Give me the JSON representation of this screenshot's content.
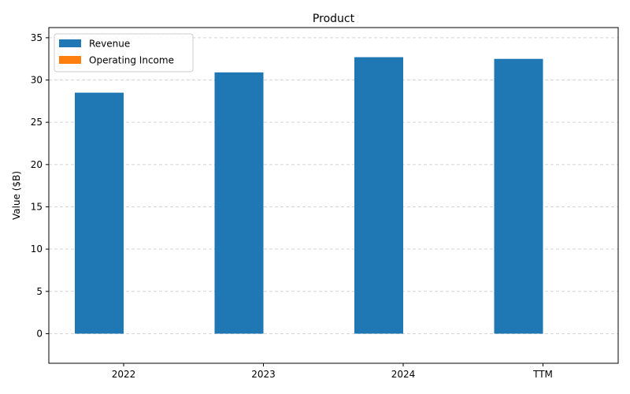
{
  "chart_data": {
    "type": "bar",
    "title": "Product",
    "xlabel": "",
    "ylabel": "Value ($B)",
    "categories": [
      "2022",
      "2023",
      "2024",
      "TTM"
    ],
    "series": [
      {
        "name": "Revenue",
        "values": [
          28.5,
          30.9,
          32.7,
          32.5
        ],
        "color": "#1f77b4"
      },
      {
        "name": "Operating Income",
        "values": [
          0,
          0,
          0,
          0
        ],
        "color": "#ff7f0e"
      }
    ],
    "ylim": [
      -3.5,
      36.2
    ],
    "yticks": [
      0,
      5,
      10,
      15,
      20,
      25,
      30,
      35
    ],
    "grid": true,
    "legend_position": "top-left"
  }
}
